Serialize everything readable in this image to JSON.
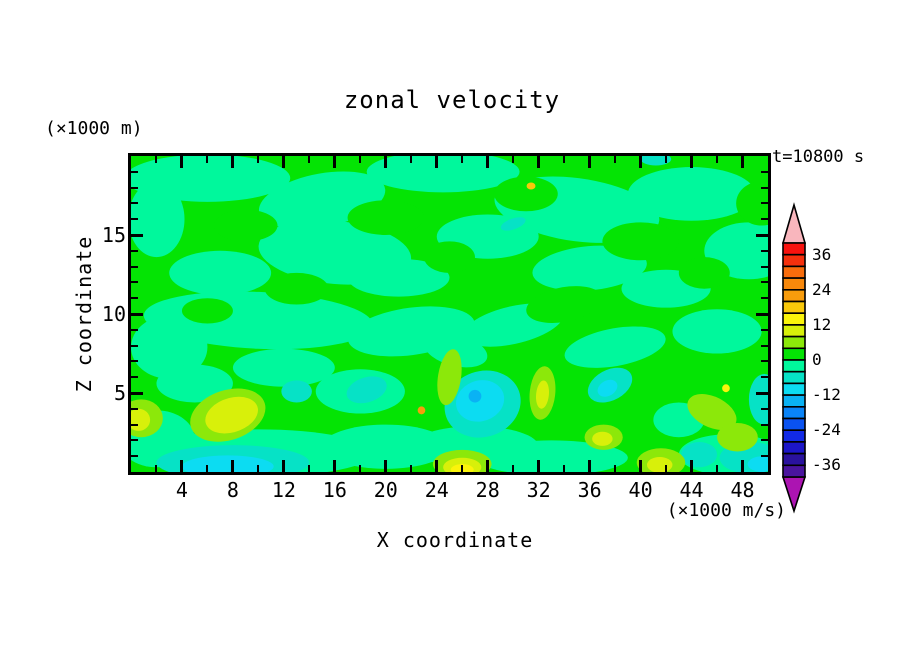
{
  "title": "zonal velocity",
  "annotations": {
    "time_label": "t=10800 s",
    "y_axis_units": "(×1000 m)",
    "colorbar_units": "(×1000 m/s)"
  },
  "x_axis": {
    "title": "X coordinate",
    "range": [
      0,
      50
    ],
    "major_ticks": [
      4,
      8,
      12,
      16,
      20,
      24,
      28,
      32,
      36,
      40,
      44,
      48
    ],
    "minor_ticks": [
      2,
      6,
      10,
      14,
      18,
      22,
      26,
      30,
      34,
      38,
      42,
      46
    ]
  },
  "y_axis": {
    "title": "Z coordinate",
    "range": [
      0,
      20
    ],
    "major_ticks": [
      5,
      10,
      15
    ],
    "minor_ticks": [
      1,
      2,
      3,
      4,
      6,
      7,
      8,
      9,
      11,
      12,
      13,
      14,
      16,
      17,
      18,
      19
    ]
  },
  "colorbar": {
    "value_range": [
      -40,
      40
    ],
    "contour_interval": 4,
    "tick_labels": [
      36,
      24,
      12,
      0,
      -12,
      -24,
      -36
    ],
    "over_arrow_color": "#f9b6bd",
    "under_arrow_color": "#ac14b2",
    "levels": [
      {
        "range": [
          36,
          40
        ],
        "color": "#f8120e"
      },
      {
        "range": [
          32,
          36
        ],
        "color": "#f5300d"
      },
      {
        "range": [
          28,
          32
        ],
        "color": "#f86c0c"
      },
      {
        "range": [
          24,
          28
        ],
        "color": "#f8880b"
      },
      {
        "range": [
          20,
          24
        ],
        "color": "#f89c0c"
      },
      {
        "range": [
          16,
          20
        ],
        "color": "#f9c80a"
      },
      {
        "range": [
          12,
          16
        ],
        "color": "#fbf40b"
      },
      {
        "range": [
          8,
          12
        ],
        "color": "#d8f00a"
      },
      {
        "range": [
          4,
          8
        ],
        "color": "#8ce80a"
      },
      {
        "range": [
          0,
          4
        ],
        "color": "#04e404"
      },
      {
        "range": [
          -4,
          0
        ],
        "color": "#00f89c"
      },
      {
        "range": [
          -8,
          -4
        ],
        "color": "#06e2c6"
      },
      {
        "range": [
          -12,
          -8
        ],
        "color": "#0cdcf2"
      },
      {
        "range": [
          -16,
          -12
        ],
        "color": "#0ab2f4"
      },
      {
        "range": [
          -20,
          -16
        ],
        "color": "#0a84f8"
      },
      {
        "range": [
          -24,
          -20
        ],
        "color": "#0a52f0"
      },
      {
        "range": [
          -28,
          -24
        ],
        "color": "#122ae6"
      },
      {
        "range": [
          -32,
          -28
        ],
        "color": "#1c16c8"
      },
      {
        "range": [
          -36,
          -32
        ],
        "color": "#2a129e"
      },
      {
        "range": [
          -40,
          -36
        ],
        "color": "#4a149e"
      }
    ]
  },
  "chart_data": {
    "type": "heatmap",
    "title": "zonal velocity",
    "xlabel": "X coordinate",
    "ylabel": "Z coordinate",
    "xlim": [
      0,
      50
    ],
    "ylim": [
      0,
      20
    ],
    "value_units": "(×1000 m/s)",
    "coordinate_units": "(×1000 m)",
    "time": "t=10800 s",
    "background_level_index": 10,
    "field_blobs": [
      [
        11,
        6,
        18.6,
        6.5,
        1.5,
        0
      ],
      [
        11,
        15,
        17.2,
        5,
        1.7,
        -8
      ],
      [
        11,
        24.5,
        19,
        6,
        1.3,
        0
      ],
      [
        11,
        35,
        16.6,
        6.5,
        2,
        6
      ],
      [
        11,
        44,
        17.6,
        5,
        1.7,
        0
      ],
      [
        11,
        48.5,
        14,
        3.5,
        1.8,
        0
      ],
      [
        11,
        28,
        14.9,
        4,
        1.4,
        0
      ],
      [
        11,
        16,
        13.9,
        6,
        2,
        4
      ],
      [
        11,
        7,
        12.6,
        4,
        1.4,
        0
      ],
      [
        11,
        2,
        16,
        2.2,
        2.4,
        0
      ],
      [
        11,
        21,
        12.3,
        4,
        1.2,
        0
      ],
      [
        11,
        36,
        12.9,
        4.5,
        1.4,
        -4
      ],
      [
        11,
        42,
        11.6,
        3.5,
        1.2,
        0
      ],
      [
        11,
        10,
        9.6,
        9,
        1.8,
        2
      ],
      [
        11,
        22,
        8.9,
        5,
        1.5,
        -6
      ],
      [
        11,
        3,
        7.9,
        3,
        2,
        0
      ],
      [
        11,
        30,
        9.3,
        4,
        1.2,
        -10
      ],
      [
        11,
        38,
        7.9,
        4,
        1.2,
        -8
      ],
      [
        11,
        46,
        8.9,
        3.5,
        1.4,
        0
      ],
      [
        11,
        12,
        6.6,
        4,
        1.2,
        0
      ],
      [
        11,
        5,
        5.6,
        3,
        1.2,
        0
      ],
      [
        11,
        18,
        5.1,
        3.5,
        1.4,
        0
      ],
      [
        11,
        25.5,
        7.7,
        2.5,
        1,
        10
      ],
      [
        11,
        2,
        2.1,
        3,
        1.8,
        0
      ],
      [
        11,
        10,
        1.2,
        9,
        1.5,
        0
      ],
      [
        11,
        20,
        1.6,
        5,
        1.4,
        0
      ],
      [
        11,
        27,
        1.6,
        5,
        1.3,
        0
      ],
      [
        11,
        33,
        0.9,
        6,
        1.1,
        0
      ],
      [
        11,
        47,
        1.1,
        4,
        1.3,
        0
      ],
      [
        11,
        43,
        3.3,
        2,
        1.1,
        0
      ],
      [
        10,
        20,
        16.1,
        3,
        1.1,
        0
      ],
      [
        10,
        9,
        15.6,
        2.5,
        1,
        0
      ],
      [
        10,
        31,
        17.6,
        2.5,
        1.1,
        0
      ],
      [
        10,
        40,
        14.6,
        3,
        1.2,
        0
      ],
      [
        10,
        25,
        13.6,
        2,
        1,
        0
      ],
      [
        10,
        13,
        11.6,
        2.5,
        1,
        0
      ],
      [
        10,
        45,
        12.6,
        2,
        1,
        0
      ],
      [
        10,
        34,
        10.6,
        3,
        1.1,
        -8
      ],
      [
        10,
        49.5,
        17,
        2,
        1.4,
        0
      ],
      [
        10,
        6,
        10.2,
        2,
        0.8,
        0
      ],
      [
        12,
        8,
        0.6,
        6,
        1.1,
        0
      ],
      [
        12,
        27.6,
        4.3,
        3,
        2.1,
        -8
      ],
      [
        12,
        13,
        5.1,
        1.2,
        0.7,
        0
      ],
      [
        12,
        18.5,
        5.2,
        1.6,
        0.8,
        -12
      ],
      [
        12,
        37.6,
        5.5,
        1.8,
        1,
        -18
      ],
      [
        12,
        49.7,
        4.6,
        1.2,
        1.6,
        0
      ],
      [
        12,
        48.6,
        0.9,
        2.4,
        1,
        0
      ],
      [
        12,
        44.6,
        1.1,
        1.4,
        0.8,
        0
      ],
      [
        12,
        30,
        15.7,
        1,
        0.35,
        -15
      ],
      [
        12,
        41.2,
        19.8,
        1.2,
        0.4,
        0
      ],
      [
        13,
        7.6,
        0.35,
        3.6,
        0.7,
        0
      ],
      [
        13,
        27.4,
        4.5,
        1.9,
        1.3,
        -8
      ],
      [
        13,
        37.4,
        5.3,
        0.8,
        0.5,
        -18
      ],
      [
        13,
        49.6,
        0.5,
        1.2,
        0.5,
        0
      ],
      [
        14,
        27,
        4.8,
        0.5,
        0.4,
        0
      ],
      [
        9,
        7.6,
        3.6,
        3,
        1.6,
        -12
      ],
      [
        9,
        0.8,
        3.4,
        1.7,
        1.2,
        0
      ],
      [
        9,
        25,
        6,
        0.9,
        1.8,
        12
      ],
      [
        9,
        32.3,
        5,
        1,
        1.7,
        8
      ],
      [
        9,
        26,
        0.5,
        2.3,
        0.9,
        0
      ],
      [
        9,
        37.1,
        2.2,
        1.5,
        0.8,
        0
      ],
      [
        9,
        41.6,
        0.6,
        1.9,
        0.9,
        0
      ],
      [
        9,
        45.6,
        3.8,
        2,
        1,
        18
      ],
      [
        9,
        47.6,
        2.2,
        1.6,
        0.9,
        0
      ],
      [
        8,
        7.9,
        3.6,
        2.1,
        1.1,
        -12
      ],
      [
        8,
        8.4,
        3.7,
        1.2,
        0.6,
        -12
      ],
      [
        8,
        0.6,
        3.3,
        0.9,
        0.7,
        0
      ],
      [
        8,
        26,
        0.3,
        1.5,
        0.6,
        0
      ],
      [
        8,
        41.5,
        0.45,
        1,
        0.5,
        0
      ],
      [
        8,
        37,
        2.1,
        0.8,
        0.45,
        0
      ],
      [
        8,
        32.3,
        4.9,
        0.5,
        0.9,
        8
      ],
      [
        7,
        26,
        0.15,
        0.9,
        0.35,
        0
      ],
      [
        7,
        46.7,
        5.3,
        0.3,
        0.25,
        0
      ],
      [
        6,
        31.4,
        18.1,
        0.35,
        0.22,
        0
      ],
      [
        5,
        22.8,
        3.9,
        0.3,
        0.25,
        0
      ]
    ]
  }
}
